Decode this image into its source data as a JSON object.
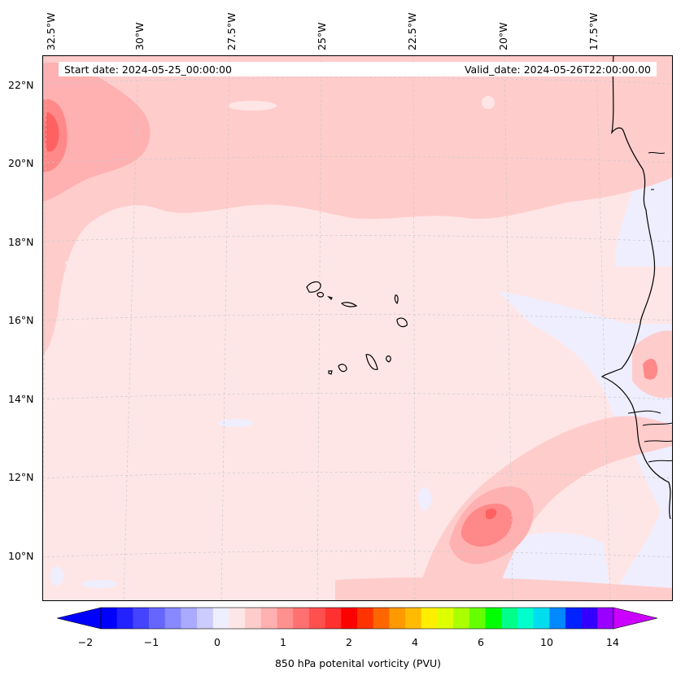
{
  "header": {
    "start_date": "Start date: 2024-05-25_00:00:00",
    "valid_date": "Valid_date: 2024-05-26T22:00:00.00"
  },
  "axes": {
    "lon_labels": [
      "32.5°W",
      "30°W",
      "27.5°W",
      "25°W",
      "22.5°W",
      "20°W",
      "17.5°W"
    ],
    "lat_labels": [
      "22°N",
      "20°N",
      "18°N",
      "16°N",
      "14°N",
      "12°N",
      "10°N"
    ]
  },
  "colorbar": {
    "label": "850 hPa potenital vorticity (PVU)",
    "ticks": [
      "−2",
      "−1",
      "0",
      "1",
      "2",
      "4",
      "6",
      "10",
      "14"
    ],
    "colors": [
      "#0000ff",
      "#2222ff",
      "#4444ff",
      "#6666ff",
      "#8888ff",
      "#aaaaff",
      "#ccccff",
      "#eeeeff",
      "#ffe6e6",
      "#ffcccc",
      "#ffb0b0",
      "#ff9090",
      "#ff7070",
      "#ff5050",
      "#ff3030",
      "#ff0000",
      "#ff3300",
      "#ff6600",
      "#ff9900",
      "#ffbb00",
      "#ffee00",
      "#ddff00",
      "#aaff00",
      "#66ff00",
      "#00ff00",
      "#00ff88",
      "#00ffcc",
      "#00ddee",
      "#0088ff",
      "#0022ff",
      "#3300ff",
      "#9900ff"
    ]
  },
  "map_colors": {
    "background": "#ffe6e6",
    "band": "#ffcccc",
    "medium": "#ffb0b0",
    "strong": "#ff8888",
    "core": "#ff6060",
    "blue_area": "#eeeeff",
    "coast": "#000000"
  }
}
